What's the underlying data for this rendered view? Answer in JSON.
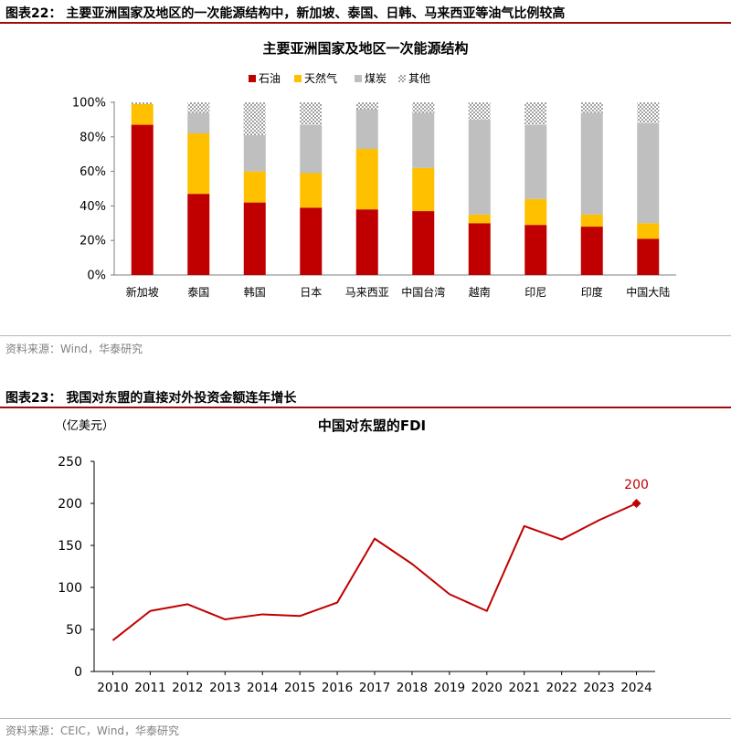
{
  "figure1": {
    "header": "图表22：  主要亚洲国家及地区的一次能源结构中，新加坡、泰国、日韩、马来西亚等油气比例较高",
    "source": "资料来源：Wind，华泰研究"
  },
  "figure2": {
    "header": "图表23：  我国对东盟的直接对外投资金额连年增长",
    "source": "资料来源：CEIC，Wind，华泰研究"
  },
  "chart_data": [
    {
      "type": "bar",
      "stacked": true,
      "title": "主要亚洲国家及地区一次能源结构",
      "categories": [
        "新加坡",
        "泰国",
        "韩国",
        "日本",
        "马来西亚",
        "中国台湾",
        "越南",
        "印尼",
        "印度",
        "中国大陆"
      ],
      "series": [
        {
          "name": "石油",
          "color": "#c00000",
          "values": [
            87,
            47,
            42,
            39,
            38,
            37,
            30,
            29,
            28,
            21
          ]
        },
        {
          "name": "天然气",
          "color": "#ffc000",
          "values": [
            12,
            35,
            18,
            20,
            35,
            25,
            5,
            15,
            7,
            9
          ]
        },
        {
          "name": "煤炭",
          "color": "#bfbfbf",
          "values": [
            0,
            12,
            21,
            28,
            23,
            32,
            55,
            43,
            59,
            58
          ]
        },
        {
          "name": "其他",
          "color": "dotted",
          "values": [
            1,
            6,
            19,
            13,
            4,
            6,
            10,
            13,
            6,
            12
          ]
        }
      ],
      "yticks": [
        "0%",
        "20%",
        "40%",
        "60%",
        "80%",
        "100%"
      ],
      "ylim": [
        0,
        100
      ],
      "legend": "top-center",
      "grid": false
    },
    {
      "type": "line",
      "title": "中国对东盟的FDI",
      "ylabel": "（亿美元）",
      "x": [
        "2010",
        "2011",
        "2012",
        "2013",
        "2014",
        "2015",
        "2016",
        "2017",
        "2018",
        "2019",
        "2020",
        "2021",
        "2022",
        "2023",
        "2024"
      ],
      "series": [
        {
          "color": "#c00000",
          "values": [
            37,
            72,
            80,
            62,
            68,
            66,
            82,
            158,
            128,
            92,
            72,
            173,
            157,
            180,
            200
          ]
        }
      ],
      "annotation": {
        "label": "200",
        "index": 14
      },
      "yticks": [
        "0",
        "50",
        "100",
        "150",
        "200",
        "250"
      ],
      "ylim": [
        0,
        250
      ],
      "grid": false,
      "legend": "none"
    }
  ]
}
